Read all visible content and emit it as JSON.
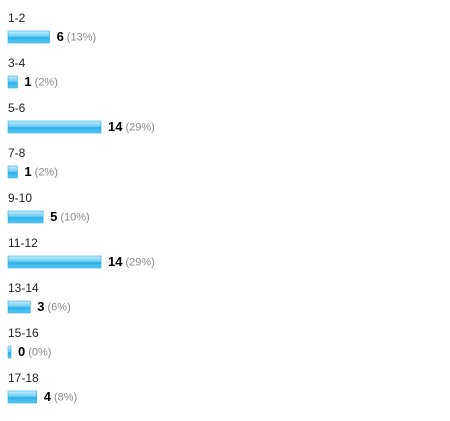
{
  "chart_data": {
    "type": "bar",
    "orientation": "horizontal",
    "categories": [
      "1-2",
      "3-4",
      "5-6",
      "7-8",
      "9-10",
      "11-12",
      "13-14",
      "15-16",
      "17-18"
    ],
    "values": [
      6,
      1,
      14,
      1,
      5,
      14,
      3,
      0,
      4
    ],
    "shares": [
      13,
      2,
      29,
      2,
      10,
      29,
      6,
      0,
      8
    ],
    "share_labels": [
      "(13%)",
      "(2%)",
      "(29%)",
      "(2%)",
      "(10%)",
      "(29%)",
      "(6%)",
      "(0%)",
      "(8%)"
    ],
    "color": "#29b0ea"
  }
}
